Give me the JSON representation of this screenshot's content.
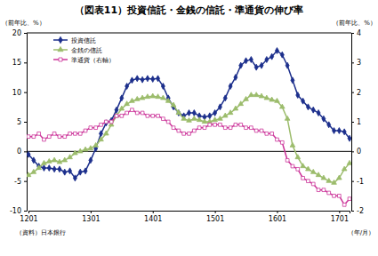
{
  "chart_data": {
    "type": "line",
    "title": "（図表11）投資信託・金銭の信託・準通貨の伸び率",
    "y_label": "（前年比、%）",
    "y2_label": "（前年比、%）",
    "x_label": "（年/月）",
    "annotations": [
      "（資料）日本銀行"
    ],
    "categories": [
      "1201",
      null,
      null,
      null,
      null,
      null,
      null,
      null,
      null,
      null,
      null,
      null,
      "1301",
      null,
      null,
      null,
      null,
      null,
      null,
      null,
      null,
      null,
      null,
      null,
      "1401",
      null,
      null,
      null,
      null,
      null,
      null,
      null,
      null,
      null,
      null,
      null,
      "1501",
      null,
      null,
      null,
      null,
      null,
      null,
      null,
      null,
      null,
      null,
      null,
      "1601",
      null,
      null,
      null,
      null,
      null,
      null,
      null,
      null,
      null,
      null,
      null,
      "1701",
      null,
      null
    ],
    "ylim": [
      -10,
      20
    ],
    "yticks": [
      -10,
      -5,
      0,
      5,
      10,
      15,
      20
    ],
    "y2lim": [
      -2,
      4
    ],
    "y2ticks": [
      -2,
      -1,
      0,
      1,
      2,
      3,
      4
    ],
    "grid": false,
    "legend": "upper left",
    "series": [
      {
        "name": "投資信託",
        "color": "#1c2f8c",
        "marker": "diamond",
        "line_style": "solid",
        "values": [
          -0.5,
          -1.5,
          -2.5,
          -2.8,
          -2.8,
          -3.0,
          -3.0,
          -3.5,
          -3.3,
          -4.5,
          -3.5,
          -3.3,
          -1.5,
          0.5,
          3.0,
          4.8,
          5.2,
          7.0,
          9.0,
          11.0,
          12.0,
          12.3,
          12.1,
          12.3,
          12.2,
          12.3,
          11.0,
          9.0,
          7.5,
          6.5,
          6.0,
          6.5,
          6.5,
          6.0,
          5.8,
          6.0,
          6.5,
          7.5,
          9.0,
          11.0,
          12.5,
          14.5,
          15.3,
          15.5,
          14.2,
          14.5,
          15.5,
          16.0,
          17.0,
          16.3,
          14.5,
          12.0,
          9.5,
          8.5,
          7.5,
          7.0,
          6.5,
          5.5,
          4.5,
          3.5,
          3.5,
          3.3,
          2.2
        ]
      },
      {
        "name": "金銭の信託",
        "color": "#9cbc6c",
        "marker": "triangle",
        "line_style": "solid",
        "values": [
          -4.0,
          -3.5,
          -2.8,
          -2.0,
          -1.7,
          -1.5,
          -1.8,
          -1.5,
          -1.0,
          -0.3,
          0.0,
          0.3,
          0.5,
          1.0,
          2.0,
          3.0,
          4.5,
          6.0,
          7.2,
          8.0,
          8.5,
          8.8,
          9.0,
          9.2,
          9.3,
          9.2,
          9.0,
          8.5,
          7.8,
          6.5,
          5.5,
          5.2,
          5.5,
          5.3,
          5.0,
          5.0,
          5.3,
          5.5,
          6.0,
          6.5,
          7.2,
          8.0,
          8.8,
          9.5,
          9.5,
          9.3,
          9.0,
          8.7,
          8.5,
          7.5,
          5.5,
          1.0,
          -1.0,
          -2.5,
          -3.0,
          -3.5,
          -4.0,
          -4.5,
          -5.0,
          -5.3,
          -4.5,
          -3.0,
          -2.0
        ]
      },
      {
        "name": "準通貨（右軸）",
        "color": "#cc3399",
        "marker": "square",
        "line_style": "solid",
        "axis": "y2",
        "values": [
          0.5,
          0.5,
          0.6,
          0.4,
          0.5,
          0.6,
          0.5,
          0.5,
          0.6,
          0.6,
          0.6,
          0.7,
          0.8,
          0.8,
          0.9,
          1.0,
          1.0,
          1.2,
          1.2,
          1.3,
          1.4,
          1.3,
          1.3,
          1.2,
          1.2,
          1.2,
          1.1,
          1.0,
          0.8,
          0.7,
          0.6,
          0.6,
          0.7,
          0.8,
          0.8,
          0.9,
          0.9,
          0.9,
          0.8,
          0.8,
          0.9,
          0.9,
          0.8,
          0.8,
          0.7,
          0.7,
          0.6,
          0.6,
          0.4,
          0.3,
          -0.3,
          -0.5,
          -0.6,
          -0.9,
          -1.0,
          -1.1,
          -1.3,
          -1.3,
          -1.4,
          -1.5,
          -1.5,
          -1.8,
          -1.6
        ]
      }
    ]
  }
}
